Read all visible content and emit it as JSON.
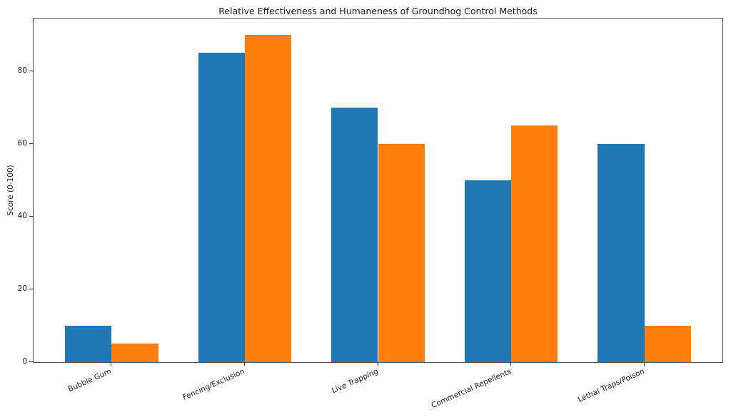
{
  "chart_data": {
    "type": "bar",
    "title": "Relative Effectiveness and Humaneness of Groundhog Control Methods",
    "xlabel": "",
    "ylabel": "Score (0-100)",
    "categories": [
      "Bubble Gum",
      "Fencing/Exclusion",
      "Live Trapping",
      "Commercial Repellents",
      "Lethal Traps/Poison"
    ],
    "series": [
      {
        "name": "blue",
        "color": "#1f77b4",
        "values": [
          10,
          85,
          70,
          50,
          60
        ]
      },
      {
        "name": "orange",
        "color": "#ff7f0e",
        "values": [
          5,
          90,
          60,
          65,
          10
        ]
      }
    ],
    "ylim": [
      0,
      94.5
    ],
    "yticks": [
      0,
      20,
      40,
      60,
      80
    ],
    "xlim": [
      -0.585,
      4.585
    ],
    "bar_width": 0.35,
    "grid": false,
    "legend_position": "none",
    "x_tick_rotation_deg": 24
  }
}
